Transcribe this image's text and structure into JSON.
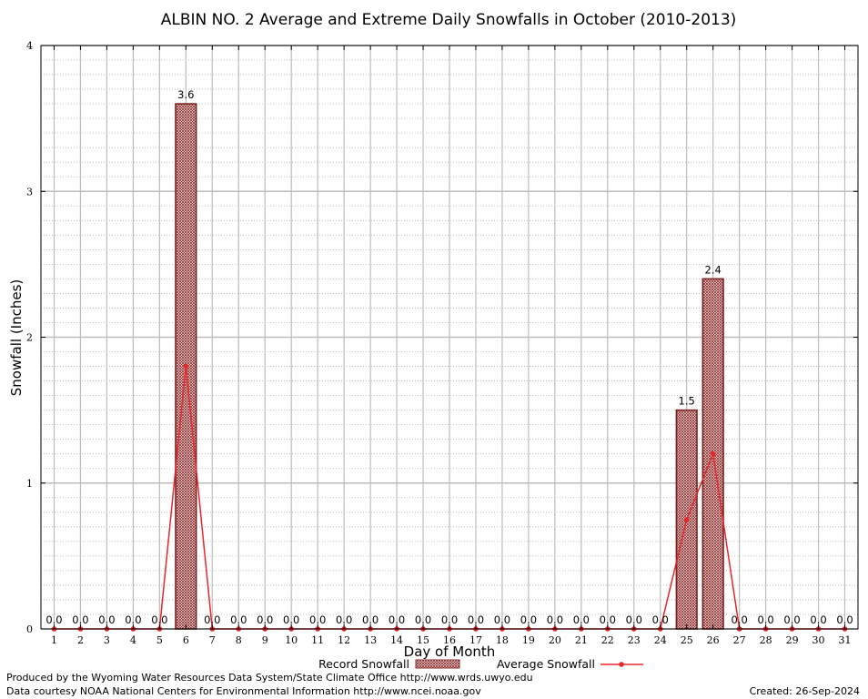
{
  "chart_data": {
    "type": "bar",
    "title": "ALBIN NO. 2 Average and Extreme Daily Snowfalls in October (2010-2013)",
    "xlabel": "Day of Month",
    "ylabel": "Snowfall (Inches)",
    "ylim": [
      0,
      4
    ],
    "yticks": [
      "0",
      "1",
      "2",
      "3",
      "4"
    ],
    "categories": [
      "1",
      "2",
      "3",
      "4",
      "5",
      "6",
      "7",
      "8",
      "9",
      "10",
      "11",
      "12",
      "13",
      "14",
      "15",
      "16",
      "17",
      "18",
      "19",
      "20",
      "21",
      "22",
      "23",
      "24",
      "25",
      "26",
      "27",
      "28",
      "29",
      "30",
      "31"
    ],
    "grid": true,
    "legend_position": "bottom",
    "series": [
      {
        "name": "Record Snowfall",
        "kind": "bar",
        "color": "#a83232",
        "values": [
          0,
          0,
          0,
          0,
          0,
          3.6,
          0,
          0,
          0,
          0,
          0,
          0,
          0,
          0,
          0,
          0,
          0,
          0,
          0,
          0,
          0,
          0,
          0,
          0,
          1.5,
          2.4,
          0,
          0,
          0,
          0,
          0
        ],
        "labels": [
          "0.0",
          "0.0",
          "0.0",
          "0.0",
          "0.0",
          "3.6",
          "0.0",
          "0.0",
          "0.0",
          "0.0",
          "0.0",
          "0.0",
          "0.0",
          "0.0",
          "0.0",
          "0.0",
          "0.0",
          "0.0",
          "0.0",
          "0.0",
          "0.0",
          "0.0",
          "0.0",
          "0.0",
          "1.5",
          "2.4",
          "0.0",
          "0.0",
          "0.0",
          "0.0",
          "0.0"
        ]
      },
      {
        "name": "Average Snowfall",
        "kind": "line",
        "color": "#e8262b",
        "values": [
          0,
          0,
          0,
          0,
          0,
          1.8,
          0,
          0,
          0,
          0,
          0,
          0,
          0,
          0,
          0,
          0,
          0,
          0,
          0,
          0,
          0,
          0,
          0,
          0,
          0.75,
          1.2,
          0,
          0,
          0,
          0,
          0
        ]
      }
    ]
  },
  "footer": {
    "produced_by": "Produced by the Wyoming Water Resources Data System/State Climate Office http://www.wrds.uwyo.edu",
    "data_courtesy": "Data courtesy NOAA National Centers for Environmental Information http://www.ncei.noaa.gov",
    "created": "Created: 26-Sep-2024"
  }
}
